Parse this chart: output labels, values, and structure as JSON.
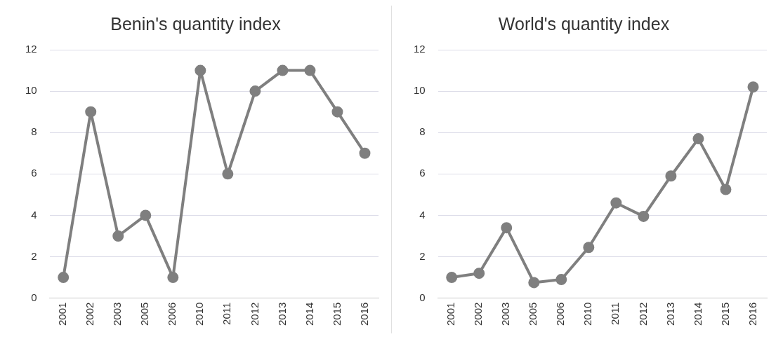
{
  "chart_data": [
    {
      "type": "line",
      "title": "Benin's quantity index",
      "categories": [
        "2001",
        "2002",
        "2003",
        "2005",
        "2006",
        "2010",
        "2011",
        "2012",
        "2013",
        "2014",
        "2015",
        "2016"
      ],
      "series": [
        {
          "color": "#7f7f7f",
          "values": [
            1,
            9,
            3,
            4,
            1,
            11,
            6,
            10,
            11,
            11,
            9,
            7
          ]
        }
      ],
      "ylim": [
        0,
        12
      ],
      "yticks": [
        0,
        2,
        4,
        6,
        8,
        10,
        12
      ],
      "grid": "y",
      "legend": false,
      "marker": "circle",
      "line_style": "solid"
    },
    {
      "type": "line",
      "title": "World's quantity index",
      "categories": [
        "2001",
        "2002",
        "2003",
        "2005",
        "2006",
        "2010",
        "2011",
        "2012",
        "2013",
        "2014",
        "2015",
        "2016"
      ],
      "series": [
        {
          "color": "#7f7f7f",
          "values": [
            1,
            1.2,
            3.4,
            0.75,
            0.9,
            2.45,
            4.6,
            3.95,
            5.9,
            7.7,
            5.25,
            10.2
          ]
        }
      ],
      "ylim": [
        0,
        12
      ],
      "yticks": [
        0,
        2,
        4,
        6,
        8,
        10,
        12
      ],
      "grid": "y",
      "legend": false,
      "marker": "circle",
      "line_style": "solid"
    }
  ]
}
